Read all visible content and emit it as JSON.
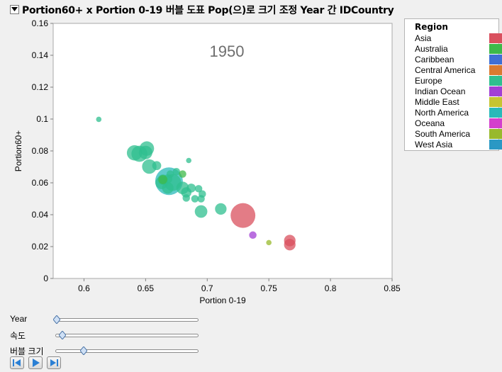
{
  "window": {
    "title": "Portion60+ x Portion 0-19 버블 도표 Pop(으)로 크기 조정 Year 간 IDCountry"
  },
  "legend": {
    "title": "Region",
    "items": [
      {
        "label": "Asia",
        "color": "#d9505e"
      },
      {
        "label": "Australia",
        "color": "#3db94a"
      },
      {
        "label": "Caribbean",
        "color": "#3f6fd4"
      },
      {
        "label": "Central America",
        "color": "#d97a30"
      },
      {
        "label": "Europe",
        "color": "#2fbf8f"
      },
      {
        "label": "Indian Ocean",
        "color": "#a23fd4"
      },
      {
        "label": "Middle East",
        "color": "#c6c431"
      },
      {
        "label": "North America",
        "color": "#29b9b9"
      },
      {
        "label": "Oceana",
        "color": "#d43fcd"
      },
      {
        "label": "South America",
        "color": "#98b92c"
      },
      {
        "label": "West Asia",
        "color": "#2a98c4"
      }
    ]
  },
  "controls": {
    "sliders": [
      {
        "label": "Year",
        "value": 0.0
      },
      {
        "label": "속도",
        "value": 0.04
      },
      {
        "label": "버블 크기",
        "value": 0.2
      }
    ],
    "buttons": [
      "step-back",
      "play",
      "step-forward"
    ]
  },
  "chart_data": {
    "type": "scatter",
    "subtype": "bubble",
    "watermark": "1950",
    "xlabel": "Portion 0-19",
    "ylabel": "Portion60+",
    "xlim": [
      0.575,
      0.85
    ],
    "ylim": [
      0,
      0.16
    ],
    "xticks": [
      "0.6",
      "0.65",
      "0.7",
      "0.75",
      "0.8",
      "0.85"
    ],
    "yticks": [
      "0",
      "0.02",
      "0.04",
      "0.06",
      "0.08",
      "0.1",
      "0.12",
      "0.14",
      "0.16"
    ],
    "xtick_values": [
      0.6,
      0.65,
      0.7,
      0.75,
      0.8,
      0.85
    ],
    "ytick_values": [
      0,
      0.02,
      0.04,
      0.06,
      0.08,
      0.1,
      0.12,
      0.14,
      0.16
    ],
    "points": [
      {
        "region": "Europe",
        "x": 0.612,
        "y": 0.0998,
        "size": 1
      },
      {
        "region": "Europe",
        "x": 0.641,
        "y": 0.0788,
        "size": 9
      },
      {
        "region": "Europe",
        "x": 0.645,
        "y": 0.0782,
        "size": 10
      },
      {
        "region": "Europe",
        "x": 0.65,
        "y": 0.079,
        "size": 7
      },
      {
        "region": "Europe",
        "x": 0.651,
        "y": 0.0815,
        "size": 8
      },
      {
        "region": "Europe",
        "x": 0.653,
        "y": 0.0702,
        "size": 8
      },
      {
        "region": "Europe",
        "x": 0.659,
        "y": 0.0708,
        "size": 3
      },
      {
        "region": "Europe",
        "x": 0.664,
        "y": 0.062,
        "size": 4
      },
      {
        "region": "Europe",
        "x": 0.663,
        "y": 0.06,
        "size": 6
      },
      {
        "region": "Europe",
        "x": 0.672,
        "y": 0.0602,
        "size": 11
      },
      {
        "region": "Europe",
        "x": 0.668,
        "y": 0.0568,
        "size": 5
      },
      {
        "region": "Europe",
        "x": 0.67,
        "y": 0.0655,
        "size": 2
      },
      {
        "region": "Europe",
        "x": 0.675,
        "y": 0.067,
        "size": 2
      },
      {
        "region": "Europe",
        "x": 0.68,
        "y": 0.0568,
        "size": 6
      },
      {
        "region": "Europe",
        "x": 0.683,
        "y": 0.054,
        "size": 4
      },
      {
        "region": "Europe",
        "x": 0.685,
        "y": 0.074,
        "size": 1
      },
      {
        "region": "Europe",
        "x": 0.687,
        "y": 0.0567,
        "size": 3
      },
      {
        "region": "Europe",
        "x": 0.69,
        "y": 0.05,
        "size": 2
      },
      {
        "region": "Europe",
        "x": 0.693,
        "y": 0.0563,
        "size": 2
      },
      {
        "region": "Europe",
        "x": 0.696,
        "y": 0.053,
        "size": 2
      },
      {
        "region": "Europe",
        "x": 0.695,
        "y": 0.05,
        "size": 2
      },
      {
        "region": "Europe",
        "x": 0.683,
        "y": 0.0505,
        "size": 2
      },
      {
        "region": "Europe",
        "x": 0.695,
        "y": 0.042,
        "size": 6
      },
      {
        "region": "Europe",
        "x": 0.711,
        "y": 0.0436,
        "size": 5
      },
      {
        "region": "Europe",
        "x": 0.668,
        "y": 0.0625,
        "size": 3
      },
      {
        "region": "North America",
        "x": 0.669,
        "y": 0.061,
        "size": 30
      },
      {
        "region": "Australia",
        "x": 0.664,
        "y": 0.062,
        "size": 3
      },
      {
        "region": "Australia",
        "x": 0.68,
        "y": 0.0655,
        "size": 2
      },
      {
        "region": "Asia",
        "x": 0.729,
        "y": 0.0395,
        "size": 24
      },
      {
        "region": "Asia",
        "x": 0.767,
        "y": 0.0238,
        "size": 5
      },
      {
        "region": "Asia",
        "x": 0.767,
        "y": 0.0212,
        "size": 5
      },
      {
        "region": "Indian Ocean",
        "x": 0.737,
        "y": 0.0272,
        "size": 2
      },
      {
        "region": "South America",
        "x": 0.75,
        "y": 0.0225,
        "size": 1
      }
    ]
  }
}
